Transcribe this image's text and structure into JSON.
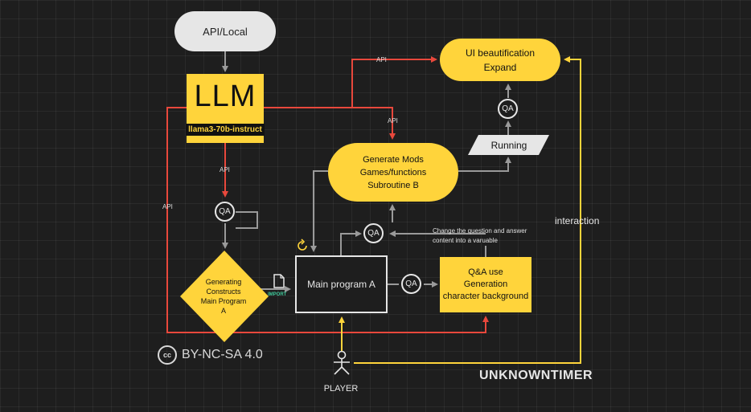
{
  "nodes": {
    "api_local": "API/Local",
    "llm_title": "LLM",
    "llm_model": "llama3-70b-instruct",
    "ui_line1": "UI beautification",
    "ui_line2": "Expand",
    "running": "Running",
    "gen_line1": "Generate Mods",
    "gen_line2": "Games/functions",
    "gen_line3": "Subroutine B",
    "main_program": "Main program A",
    "qause_line1": "Q&A use",
    "qause_line2": "Generation",
    "qause_line3": "character background",
    "diamond_line1": "Generating",
    "diamond_line2": "Constructs",
    "diamond_line3": "Main Program",
    "diamond_line4": "A",
    "qa": "QA"
  },
  "labels": {
    "api": "API",
    "import": "IMPORT",
    "interaction": "interaction",
    "note_line1": "Change the question and answer",
    "note_line2": "content into a varuable",
    "player": "PLAYER"
  },
  "footer": {
    "cc_symbol": "cc",
    "license": "BY-NC-SA 4.0",
    "author": "UNKNOWNTIMER"
  },
  "colors": {
    "background": "#1e1e1e",
    "yellow": "#ffd43b",
    "red": "#e8483c",
    "gray_line": "#9a9a9a",
    "light": "#e6e6e6"
  },
  "icons": [
    "refresh-icon",
    "document-icon",
    "person-icon",
    "creative-commons-icon"
  ]
}
